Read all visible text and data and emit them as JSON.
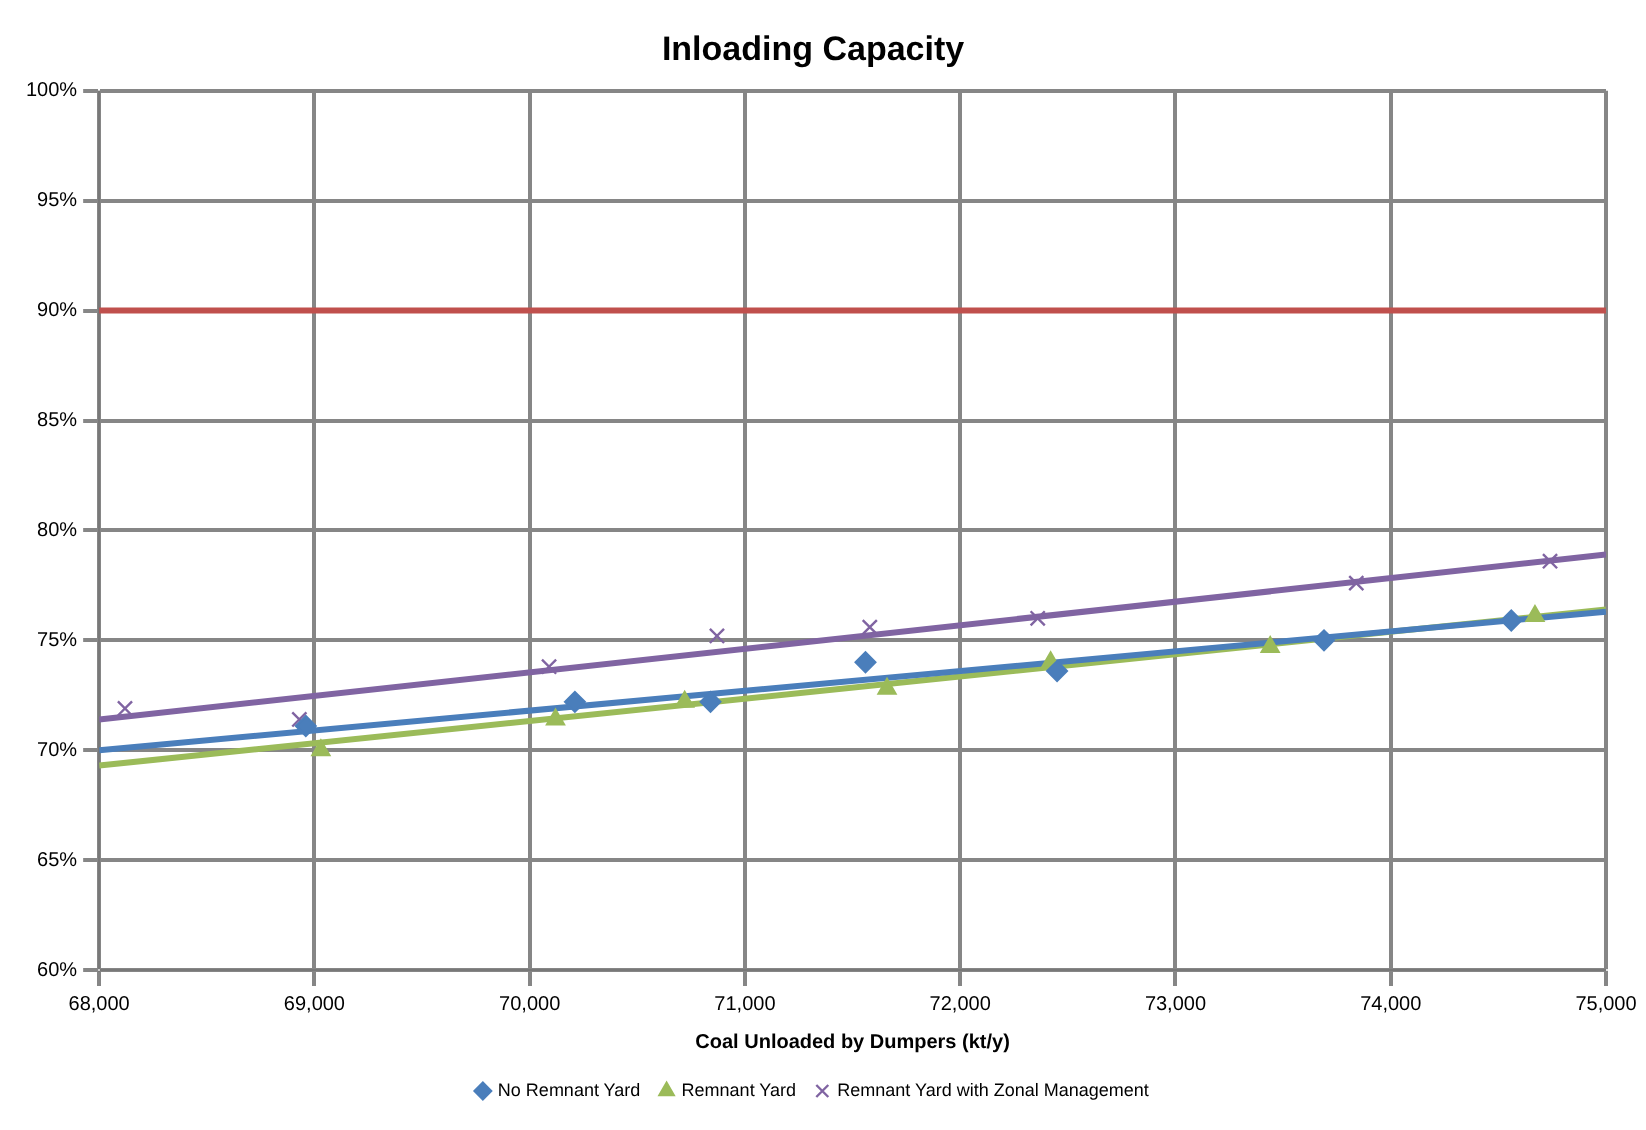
{
  "chart_data": {
    "type": "scatter",
    "title": "Inloading Capacity",
    "xlabel": "Coal Unloaded by Dumpers (kt/y)",
    "xlim": [
      68000,
      75000
    ],
    "xticks": [
      {
        "value": 68000,
        "label": "68,000"
      },
      {
        "value": 69000,
        "label": "69,000"
      },
      {
        "value": 70000,
        "label": "70,000"
      },
      {
        "value": 71000,
        "label": "71,000"
      },
      {
        "value": 72000,
        "label": "72,000"
      },
      {
        "value": 73000,
        "label": "73,000"
      },
      {
        "value": 74000,
        "label": "74,000"
      },
      {
        "value": 75000,
        "label": "75,000"
      }
    ],
    "ylim": [
      60,
      100
    ],
    "yticks": [
      {
        "value": 60,
        "label": "60%"
      },
      {
        "value": 65,
        "label": "65%"
      },
      {
        "value": 70,
        "label": "70%"
      },
      {
        "value": 75,
        "label": "75%"
      },
      {
        "value": 80,
        "label": "80%"
      },
      {
        "value": 85,
        "label": "85%"
      },
      {
        "value": 90,
        "label": "90%"
      },
      {
        "value": 95,
        "label": "95%"
      },
      {
        "value": 100,
        "label": "100%"
      }
    ],
    "grid": true,
    "legend": "bottom",
    "series": [
      {
        "name": "No Remnant Yard",
        "color": "#4a7ebb",
        "marker": "diamond",
        "x": [
          68960,
          70210,
          70840,
          71560,
          72450,
          73690,
          74560
        ],
        "values": [
          71.1,
          72.2,
          72.2,
          74.0,
          73.6,
          75.0,
          75.9
        ]
      },
      {
        "name": "Remnant Yard",
        "color": "#9bbb59",
        "marker": "triangle",
        "x": [
          69030,
          70120,
          70720,
          71660,
          72420,
          73440,
          74670
        ],
        "values": [
          70.0,
          71.4,
          72.2,
          72.8,
          74.0,
          74.7,
          76.1
        ]
      },
      {
        "name": "Remnant Yard with Zonal Management",
        "color": "#8064a2",
        "marker": "cross",
        "x": [
          68120,
          68930,
          70090,
          70870,
          71580,
          72360,
          73840,
          74740
        ],
        "values": [
          71.9,
          71.4,
          73.8,
          75.2,
          75.6,
          76.0,
          77.6,
          78.6
        ]
      },
      {
        "type": "line",
        "color": "#4a7ebb",
        "marker": "none",
        "x": [
          68000,
          75000
        ],
        "values": [
          70.0,
          76.3
        ]
      },
      {
        "type": "line",
        "color": "#9bbb59",
        "marker": "none",
        "x": [
          68000,
          75000
        ],
        "values": [
          69.3,
          76.4
        ]
      },
      {
        "type": "line",
        "color": "#8064a2",
        "marker": "none",
        "x": [
          68000,
          75000
        ],
        "values": [
          71.4,
          78.9
        ]
      }
    ],
    "ref_lines": [
      {
        "axis": "y",
        "value": 90,
        "color": "#c0504d"
      }
    ]
  }
}
